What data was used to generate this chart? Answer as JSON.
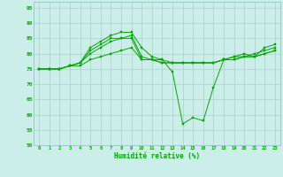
{
  "xlabel": "Humidité relative (%)",
  "bg_color": "#cceee8",
  "grid_color": "#aacccc",
  "line_color": "#00aa00",
  "xlim": [
    -0.5,
    23.5
  ],
  "ylim": [
    50,
    97
  ],
  "yticks": [
    50,
    55,
    60,
    65,
    70,
    75,
    80,
    85,
    90,
    95
  ],
  "xticks": [
    0,
    1,
    2,
    3,
    4,
    5,
    6,
    7,
    8,
    9,
    10,
    11,
    12,
    13,
    14,
    15,
    16,
    17,
    18,
    19,
    20,
    21,
    22,
    23
  ],
  "curves": [
    [
      75,
      75,
      75,
      76,
      77,
      82,
      84,
      86,
      87,
      87,
      82,
      79,
      78,
      74,
      57,
      59,
      58,
      69,
      78,
      79,
      80,
      79,
      82,
      83
    ],
    [
      75,
      75,
      75,
      76,
      77,
      81,
      83,
      85,
      85,
      86,
      79,
      78,
      78,
      77,
      77,
      77,
      77,
      77,
      78,
      79,
      79,
      80,
      81,
      82
    ],
    [
      75,
      75,
      75,
      76,
      77,
      80,
      82,
      84,
      85,
      85,
      78,
      78,
      77,
      77,
      77,
      77,
      77,
      77,
      78,
      78,
      79,
      79,
      80,
      81
    ],
    [
      75,
      75,
      75,
      76,
      76,
      78,
      79,
      80,
      81,
      82,
      78,
      78,
      77,
      77,
      77,
      77,
      77,
      77,
      78,
      78,
      79,
      79,
      80,
      81
    ]
  ]
}
